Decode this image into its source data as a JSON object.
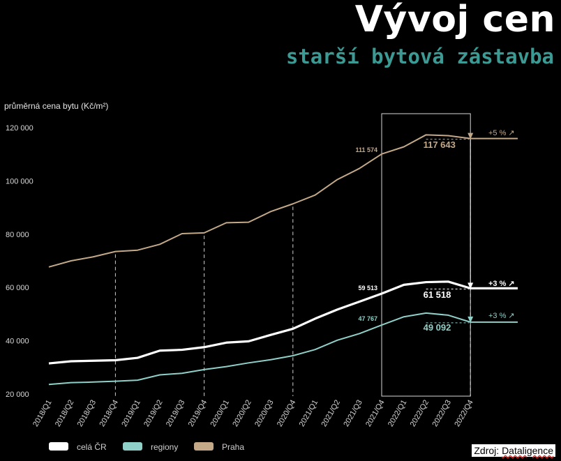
{
  "header": {
    "title": "Vývoj cen",
    "subtitle": "starší bytová zástavba"
  },
  "source": {
    "prefix": "Zdroj:",
    "name": "Dataligence"
  },
  "colors": {
    "cela_cr": "#ffffff",
    "regiony": "#8fd0c8",
    "praha": "#c4a989",
    "subtitle": "#3c9a94"
  },
  "chart_data": {
    "type": "line",
    "ylabel": "průměrná cena bytu (Kč/m²)",
    "ylim": [
      20000,
      120000
    ],
    "yticks": [
      20000,
      40000,
      60000,
      80000,
      100000,
      120000
    ],
    "ytick_labels": [
      "20 000",
      "40 000",
      "60 000",
      "80 000",
      "100 000",
      "120 000"
    ],
    "categories": [
      "2018/Q1",
      "2018/Q2",
      "2018/Q3",
      "2018/Q4",
      "2019/Q1",
      "2019/Q2",
      "2019/Q3",
      "2019/Q4",
      "2020/Q1",
      "2020/Q2",
      "2020/Q3",
      "2020/Q4",
      "2021/Q1",
      "2021/Q2",
      "2021/Q3",
      "2021/Q4",
      "2022/Q1",
      "2022/Q2",
      "2022/Q3",
      "2022/Q4"
    ],
    "series": [
      {
        "name": "Praha",
        "color": "#c4a989",
        "values": [
          67700,
          70000,
          71500,
          73500,
          74000,
          76200,
          80200,
          80500,
          84300,
          84500,
          88500,
          91400,
          94700,
          100500,
          104700,
          110100,
          112800,
          117300,
          117000,
          115900
        ],
        "extend_to": 115900
      },
      {
        "name": "celá ČR",
        "color": "#ffffff",
        "values": [
          31500,
          32300,
          32500,
          32700,
          33600,
          36300,
          36600,
          37600,
          39300,
          39800,
          42200,
          44500,
          48300,
          51700,
          54700,
          57700,
          61000,
          62000,
          62200,
          59700
        ],
        "extend_to": 59700
      },
      {
        "name": "regiony",
        "color": "#8fd0c8",
        "values": [
          23600,
          24300,
          24500,
          24800,
          25200,
          27200,
          27800,
          29200,
          30300,
          31700,
          32900,
          34400,
          36700,
          40200,
          42700,
          45900,
          49000,
          50400,
          49600,
          47000
        ],
        "extend_to": 47000
      }
    ],
    "dashed_verticals": [
      "2018/Q4",
      "2019/Q4",
      "2020/Q4",
      "2021/Q4",
      "2022/Q4"
    ],
    "highlight_range": [
      "2021/Q4",
      "2022/Q4"
    ],
    "annotations": [
      {
        "series": "Praha",
        "left_value": "111 574",
        "right_value": "117 643",
        "change": "+5 % ↗"
      },
      {
        "series": "celá ČR",
        "left_value": "59 513",
        "right_value": "61 518",
        "change": "+3 % ↗"
      },
      {
        "series": "regiony",
        "left_value": "47 767",
        "right_value": "49 092",
        "change": "+3 % ↗"
      }
    ],
    "legend": [
      "celá ČR",
      "regiony",
      "Praha"
    ],
    "legend_position": "bottom-left"
  }
}
